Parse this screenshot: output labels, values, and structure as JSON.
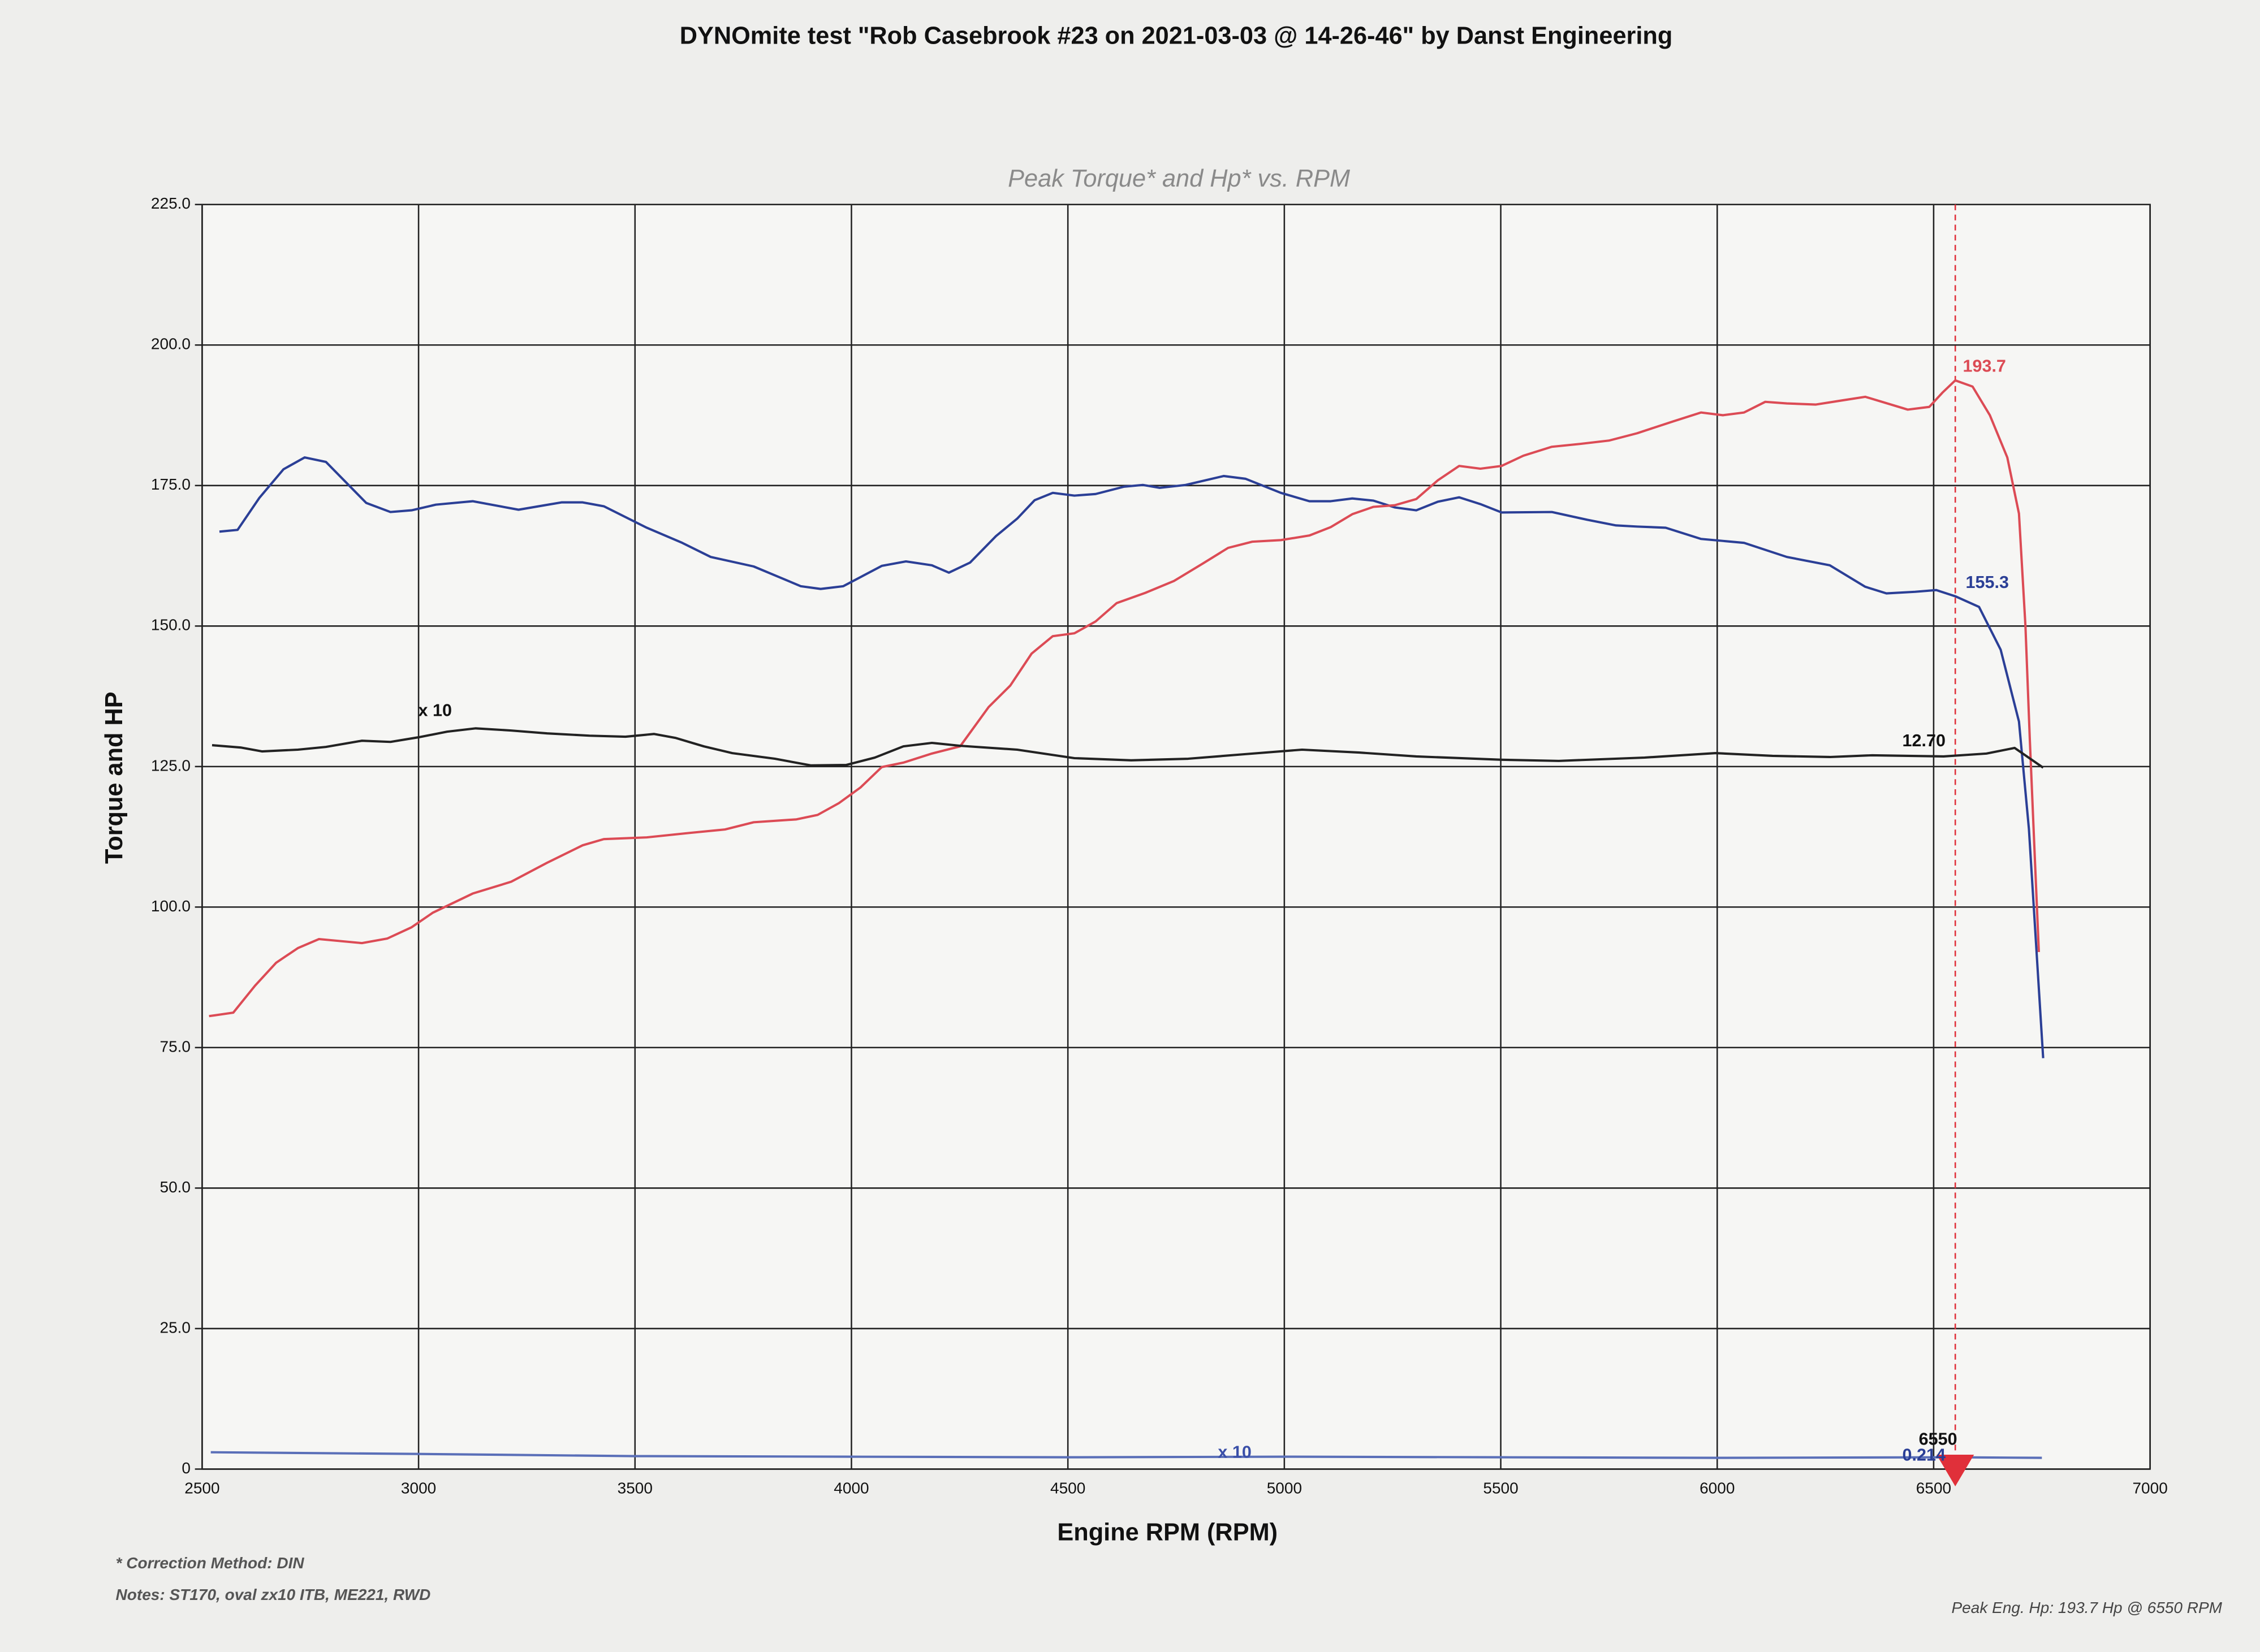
{
  "chart_data": {
    "type": "line",
    "title": "DYNOmite test \"Rob Casebrook #23 on 2021-03-03 @ 14-26-46\" by Danst Engineering",
    "subtitle": "Peak Torque* and Hp* vs. RPM",
    "x_label": "Engine RPM (RPM)",
    "y_label": "Torque and HP",
    "xlim": [
      2500,
      7000
    ],
    "xticks": [
      2500,
      3000,
      3500,
      4000,
      4500,
      5000,
      5500,
      6000,
      6500,
      7000
    ],
    "ylim": [
      0,
      225
    ],
    "yticks": [
      0,
      {
        "value": 25,
        "label": "25.0"
      },
      {
        "value": 50,
        "label": "50.0"
      },
      {
        "value": 75,
        "label": "75.0"
      },
      {
        "value": 100,
        "label": "100.0"
      },
      {
        "value": 125,
        "label": "125.0"
      },
      {
        "value": 150,
        "label": "150.0"
      },
      {
        "value": 175,
        "label": "175.0"
      },
      {
        "value": 200,
        "label": "200.0"
      },
      {
        "value": 225,
        "label": "225.0"
      }
    ],
    "grid": true,
    "series": [
      {
        "color": "#2b3f96",
        "x": [
          2540,
          2582,
          2632,
          2688,
          2737,
          2786,
          2879,
          2935,
          2984,
          3040,
          3125,
          3231,
          3330,
          3379,
          3428,
          3527,
          3609,
          3675,
          3774,
          3883,
          3929,
          3981,
          4070,
          4126,
          4186,
          4225,
          4274,
          4334,
          4383,
          4423,
          4465,
          4515,
          4564,
          4630,
          4673,
          4712,
          4772,
          4860,
          4910,
          4992,
          5058,
          5107,
          5157,
          5206,
          5255,
          5305,
          5354,
          5404,
          5453,
          5502,
          5618,
          5700,
          5766,
          5815,
          5881,
          5963,
          6062,
          6161,
          6260,
          6342,
          6391,
          6457,
          6506,
          6550,
          6605,
          6655,
          6697,
          6720,
          6753
        ],
        "values": [
          166.8,
          167.1,
          172.8,
          177.9,
          180.0,
          179.2,
          171.9,
          170.3,
          170.6,
          171.6,
          172.2,
          170.7,
          172.0,
          172.0,
          171.3,
          167.5,
          164.8,
          162.3,
          160.6,
          157.1,
          156.6,
          157.1,
          160.7,
          161.5,
          160.8,
          159.5,
          161.3,
          166.0,
          169.1,
          172.4,
          173.7,
          173.2,
          173.5,
          174.8,
          175.1,
          174.6,
          175.1,
          176.7,
          176.2,
          173.7,
          172.2,
          172.2,
          172.7,
          172.3,
          171.1,
          170.6,
          172.1,
          172.9,
          171.7,
          170.2,
          170.3,
          168.9,
          167.9,
          167.7,
          167.5,
          165.5,
          164.8,
          162.3,
          160.8,
          157.0,
          155.8,
          156.1,
          156.4,
          155.3,
          153.4,
          145.8,
          133.0,
          113.9,
          73.1
        ]
      },
      {
        "color": "#dc4b55",
        "x": [
          2516,
          2572,
          2622,
          2671,
          2721,
          2770,
          2869,
          2928,
          2984,
          3033,
          3125,
          3214,
          3297,
          3379,
          3428,
          3527,
          3626,
          3708,
          3774,
          3873,
          3922,
          3971,
          4021,
          4070,
          4120,
          4186,
          4251,
          4317,
          4367,
          4416,
          4465,
          4515,
          4564,
          4613,
          4679,
          4745,
          4811,
          4870,
          4926,
          4992,
          5058,
          5107,
          5157,
          5206,
          5255,
          5305,
          5354,
          5404,
          5453,
          5502,
          5552,
          5618,
          5684,
          5750,
          5815,
          5898,
          5963,
          6013,
          6062,
          6111,
          6161,
          6227,
          6293,
          6342,
          6440,
          6490,
          6520,
          6550,
          6590,
          6630,
          6670,
          6697,
          6712,
          6722,
          6733,
          6743
        ],
        "values": [
          80.6,
          81.2,
          86.0,
          90.1,
          92.7,
          94.3,
          93.6,
          94.4,
          96.4,
          99.0,
          102.4,
          104.5,
          107.9,
          111.0,
          112.1,
          112.4,
          113.2,
          113.8,
          115.1,
          115.6,
          116.4,
          118.5,
          121.3,
          124.9,
          125.7,
          127.3,
          128.6,
          135.6,
          139.4,
          145.1,
          148.2,
          148.7,
          150.8,
          154.1,
          155.9,
          158.0,
          161.1,
          163.9,
          165.0,
          165.3,
          166.1,
          167.6,
          169.9,
          171.2,
          171.5,
          172.6,
          175.9,
          178.5,
          178.0,
          178.5,
          180.3,
          181.9,
          182.4,
          183.0,
          184.3,
          186.4,
          188.0,
          187.5,
          188.0,
          189.9,
          189.6,
          189.4,
          190.2,
          190.8,
          188.5,
          189.0,
          191.5,
          193.7,
          192.6,
          187.5,
          180.0,
          170.0,
          150.0,
          130.0,
          110.0,
          92.0
        ]
      },
      {
        "color": "#222222",
        "x": [
          2523,
          2589,
          2638,
          2721,
          2786,
          2869,
          2935,
          3000,
          3066,
          3132,
          3214,
          3297,
          3395,
          3478,
          3544,
          3593,
          3659,
          3725,
          3823,
          3906,
          3988,
          4054,
          4120,
          4186,
          4251,
          4383,
          4515,
          4646,
          4778,
          4910,
          5041,
          5173,
          5305,
          5502,
          5634,
          5832,
          5996,
          6128,
          6260,
          6358,
          6523,
          6622,
          6687,
          6753
        ],
        "values": [
          128.8,
          128.4,
          127.7,
          128.0,
          128.5,
          129.6,
          129.4,
          130.2,
          131.2,
          131.8,
          131.4,
          130.9,
          130.5,
          130.3,
          130.8,
          130.1,
          128.6,
          127.4,
          126.4,
          125.2,
          125.3,
          126.6,
          128.6,
          129.2,
          128.7,
          128.0,
          126.5,
          126.1,
          126.4,
          127.2,
          128.0,
          127.5,
          126.8,
          126.2,
          126.0,
          126.6,
          127.4,
          126.9,
          126.7,
          127.0,
          126.8,
          127.3,
          128.3,
          124.8
        ]
      },
      {
        "color": "#5a6fb8",
        "x": [
          2520,
          3000,
          3500,
          4000,
          4500,
          5000,
          5500,
          6000,
          6550,
          6750
        ],
        "values": [
          3.0,
          2.7,
          2.3,
          2.2,
          2.1,
          2.2,
          2.1,
          2.0,
          2.1,
          2.0
        ]
      }
    ],
    "marker": {
      "x": 6550,
      "color": "#e0303a"
    },
    "annotations": [
      "x 10",
      "12.70",
      "155.3",
      "193.7",
      "x 10",
      "0.214"
    ],
    "notes": [
      "* Correction Method: DIN",
      "Notes: ST170, oval zx10 ITB, ME221, RWD"
    ],
    "peak_note": "Peak Eng. Hp: 193.7 Hp @ 6550 RPM"
  }
}
